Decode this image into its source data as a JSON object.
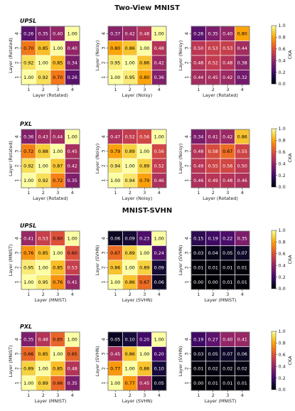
{
  "sections": [
    {
      "title": "Two-View MNIST"
    },
    {
      "title": "MNIST-SVHN"
    }
  ],
  "colorbar": {
    "label": "CKA",
    "ticks": [
      "0.0",
      "0.2",
      "0.4",
      "0.6",
      "0.8",
      "1.0"
    ]
  },
  "chart_data": [
    {
      "type": "heatmap",
      "method": "UPSL",
      "xlabel": "Layer (Rotated)",
      "ylabel": "Layer (Rotated)",
      "x_ticks": [
        "1",
        "2",
        "3",
        "4"
      ],
      "y_ticks": [
        "4",
        "3",
        "2",
        "1"
      ],
      "values": [
        [
          0.26,
          0.35,
          0.4,
          1.0
        ],
        [
          0.7,
          0.85,
          1.0,
          0.4
        ],
        [
          0.92,
          1.0,
          0.85,
          0.34
        ],
        [
          1.0,
          0.92,
          0.7,
          0.26
        ]
      ]
    },
    {
      "type": "heatmap",
      "method": "",
      "xlabel": "Layer (Noisy)",
      "ylabel": "Layer (Noisy)",
      "x_ticks": [
        "1",
        "2",
        "3",
        "4"
      ],
      "y_ticks": [
        "4",
        "3",
        "2",
        "1"
      ],
      "values": [
        [
          0.37,
          0.42,
          0.48,
          1.0
        ],
        [
          0.8,
          0.86,
          1.0,
          0.48
        ],
        [
          0.95,
          1.0,
          0.86,
          0.42
        ],
        [
          1.0,
          0.95,
          0.8,
          0.36
        ]
      ]
    },
    {
      "type": "heatmap",
      "method": "",
      "xlabel": "Layer (Rotated)",
      "ylabel": "Layer (Noisy)",
      "x_ticks": [
        "1",
        "2",
        "3",
        "4"
      ],
      "y_ticks": [
        "4",
        "3",
        "2",
        "1"
      ],
      "values": [
        [
          0.26,
          0.35,
          0.4,
          0.8
        ],
        [
          0.5,
          0.53,
          0.53,
          0.44
        ],
        [
          0.48,
          0.52,
          0.48,
          0.38
        ],
        [
          0.44,
          0.45,
          0.42,
          0.32
        ]
      ]
    },
    {
      "type": "heatmap",
      "method": "PXL",
      "xlabel": "Layer (Rotated)",
      "ylabel": "Layer (Rotated)",
      "x_ticks": [
        "1",
        "2",
        "3",
        "4"
      ],
      "y_ticks": [
        "4",
        "3",
        "2",
        "1"
      ],
      "values": [
        [
          0.36,
          0.43,
          0.44,
          1.0
        ],
        [
          0.72,
          0.88,
          1.0,
          0.45
        ],
        [
          0.92,
          1.0,
          0.87,
          0.42
        ],
        [
          1.0,
          0.92,
          0.72,
          0.35
        ]
      ]
    },
    {
      "type": "heatmap",
      "method": "",
      "xlabel": "Layer (Noisy)",
      "ylabel": "Layer (Noisy)",
      "x_ticks": [
        "1",
        "2",
        "3",
        "4"
      ],
      "y_ticks": [
        "4",
        "3",
        "2",
        "1"
      ],
      "values": [
        [
          0.47,
          0.52,
          0.56,
          1.0
        ],
        [
          0.79,
          0.89,
          1.0,
          0.56
        ],
        [
          0.94,
          1.0,
          0.89,
          0.52
        ],
        [
          1.0,
          0.94,
          0.79,
          0.46
        ]
      ]
    },
    {
      "type": "heatmap",
      "method": "",
      "xlabel": "Layer (Rotated)",
      "ylabel": "Layer (Noisy)",
      "x_ticks": [
        "1",
        "2",
        "3",
        "4"
      ],
      "y_ticks": [
        "4",
        "3",
        "2",
        "1"
      ],
      "values": [
        [
          0.34,
          0.41,
          0.42,
          0.86
        ],
        [
          0.48,
          0.58,
          0.67,
          0.55
        ],
        [
          0.49,
          0.55,
          0.56,
          0.5
        ],
        [
          0.46,
          0.49,
          0.48,
          0.46
        ]
      ]
    },
    {
      "type": "heatmap",
      "method": "UPSL",
      "xlabel": "Layer (MNIST)",
      "ylabel": "Layer (MNIST)",
      "x_ticks": [
        "1",
        "2",
        "3",
        "4"
      ],
      "y_ticks": [
        "4",
        "3",
        "2",
        "1"
      ],
      "values": [
        [
          0.41,
          0.53,
          0.6,
          1.0
        ],
        [
          0.76,
          0.85,
          1.0,
          0.6
        ],
        [
          0.95,
          1.0,
          0.85,
          0.53
        ],
        [
          1.0,
          0.95,
          0.76,
          0.41
        ]
      ]
    },
    {
      "type": "heatmap",
      "method": "",
      "xlabel": "Layer (SVHN)",
      "ylabel": "Layer (SVHN)",
      "x_ticks": [
        "1",
        "2",
        "3",
        "4"
      ],
      "y_ticks": [
        "4",
        "3",
        "2",
        "1"
      ],
      "values": [
        [
          0.06,
          0.09,
          0.23,
          1.0
        ],
        [
          0.67,
          0.89,
          1.0,
          0.24
        ],
        [
          0.86,
          1.0,
          0.89,
          0.09
        ],
        [
          1.0,
          0.86,
          0.67,
          0.06
        ]
      ]
    },
    {
      "type": "heatmap",
      "method": "",
      "xlabel": "Layer (MNIST)",
      "ylabel": "Layer (SVHN)",
      "x_ticks": [
        "1",
        "2",
        "3",
        "4"
      ],
      "y_ticks": [
        "4",
        "3",
        "2",
        "1"
      ],
      "values": [
        [
          0.15,
          0.19,
          0.22,
          0.35
        ],
        [
          0.03,
          0.04,
          0.05,
          0.07
        ],
        [
          0.01,
          0.01,
          0.01,
          0.01
        ],
        [
          0.0,
          0.0,
          0.01,
          0.01
        ]
      ]
    },
    {
      "type": "heatmap",
      "method": "PXL",
      "xlabel": "Layer (MNIST)",
      "ylabel": "Layer (MNIST)",
      "x_ticks": [
        "1",
        "2",
        "3",
        "4"
      ],
      "y_ticks": [
        "4",
        "3",
        "2",
        "1"
      ],
      "values": [
        [
          0.35,
          0.48,
          0.65,
          1.0
        ],
        [
          0.66,
          0.85,
          1.0,
          0.65
        ],
        [
          0.89,
          1.0,
          0.85,
          0.48
        ],
        [
          1.0,
          0.89,
          0.66,
          0.35
        ]
      ]
    },
    {
      "type": "heatmap",
      "method": "",
      "xlabel": "Layer (SVHN)",
      "ylabel": "Layer (SVHN)",
      "x_ticks": [
        "1",
        "2",
        "3",
        "4"
      ],
      "y_ticks": [
        "4",
        "3",
        "2",
        "1"
      ],
      "values": [
        [
          0.05,
          0.1,
          0.2,
          1.0
        ],
        [
          0.45,
          0.86,
          1.0,
          0.2
        ],
        [
          0.77,
          1.0,
          0.86,
          0.1
        ],
        [
          1.0,
          0.77,
          0.45,
          0.05
        ]
      ]
    },
    {
      "type": "heatmap",
      "method": "",
      "xlabel": "Layer (MNIST)",
      "ylabel": "Layer (SVHN)",
      "x_ticks": [
        "1",
        "2",
        "3",
        "4"
      ],
      "y_ticks": [
        "4",
        "3",
        "2",
        "1"
      ],
      "values": [
        [
          0.19,
          0.27,
          0.4,
          0.41
        ],
        [
          0.03,
          0.05,
          0.07,
          0.06
        ],
        [
          0.01,
          0.02,
          0.02,
          0.02
        ],
        [
          0.0,
          0.01,
          0.01,
          0.01
        ]
      ]
    }
  ]
}
